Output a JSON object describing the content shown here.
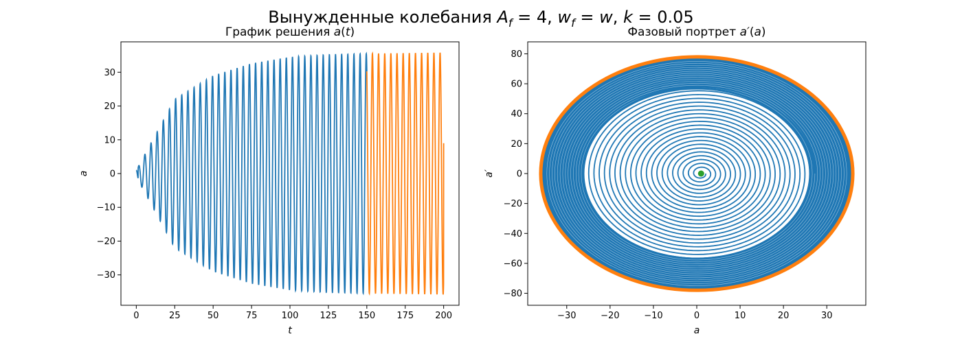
{
  "figure": {
    "suptitle": "Вынужденные колебания A_f = 4, w_f = w, k = 0.05"
  },
  "chart_data": [
    {
      "type": "line",
      "title": "График решения a(t)",
      "xlabel": "t",
      "ylabel": "a",
      "xlim": [
        -10,
        210
      ],
      "ylim": [
        -39,
        39
      ],
      "xticks": [
        0,
        25,
        50,
        75,
        100,
        125,
        150,
        175,
        200
      ],
      "yticks": [
        -30,
        -20,
        -10,
        0,
        10,
        20,
        30
      ],
      "xtick_labels": [
        "0",
        "25",
        "50",
        "75",
        "100",
        "125",
        "150",
        "175",
        "200"
      ],
      "ytick_labels": [
        "−30",
        "−20",
        "−10",
        "0",
        "10",
        "20",
        "30"
      ],
      "model": {
        "forcing_amplitude": 4,
        "damping": 0.05,
        "omega": 1.57,
        "transient_end": 150,
        "t_end": 200,
        "final_value": 9
      },
      "series": [
        {
          "color": "#1f77b4",
          "t_range": [
            0,
            150
          ],
          "amplitude_at_t": [
            [
              0,
              1
            ],
            [
              25,
              22
            ],
            [
              50,
              29
            ],
            [
              75,
              32.6
            ],
            [
              100,
              34.5
            ],
            [
              125,
              35.2
            ],
            [
              150,
              35.5
            ]
          ]
        },
        {
          "color": "#ff7f0e",
          "t_range": [
            150,
            200
          ],
          "amplitude_at_t": [
            [
              150,
              35.5
            ],
            [
              200,
              35.8
            ]
          ]
        }
      ]
    },
    {
      "type": "line",
      "title": "Фазовый портрет a′(a)",
      "xlabel": "a",
      "ylabel": "a′",
      "xlim": [
        -39,
        39
      ],
      "ylim": [
        -88,
        88
      ],
      "xticks": [
        -30,
        -20,
        -10,
        0,
        10,
        20,
        30
      ],
      "yticks": [
        -80,
        -60,
        -40,
        -20,
        0,
        20,
        40,
        60,
        80
      ],
      "xtick_labels": [
        "−30",
        "−20",
        "−10",
        "0",
        "10",
        "20",
        "30"
      ],
      "ytick_labels": [
        "−80",
        "−60",
        "−40",
        "−20",
        "0",
        "20",
        "40",
        "60",
        "80"
      ],
      "series": [
        {
          "color": "#1f77b4",
          "kind": "spiral",
          "start_point": [
            1,
            0
          ],
          "limit_cycle": [
            36,
            78
          ]
        },
        {
          "color": "#ff7f0e",
          "kind": "limit_cycle",
          "a_amplitude": 36,
          "da_amplitude": 78
        },
        {
          "color": "#2ca02c",
          "kind": "marker",
          "point": [
            1,
            0
          ]
        }
      ]
    }
  ]
}
